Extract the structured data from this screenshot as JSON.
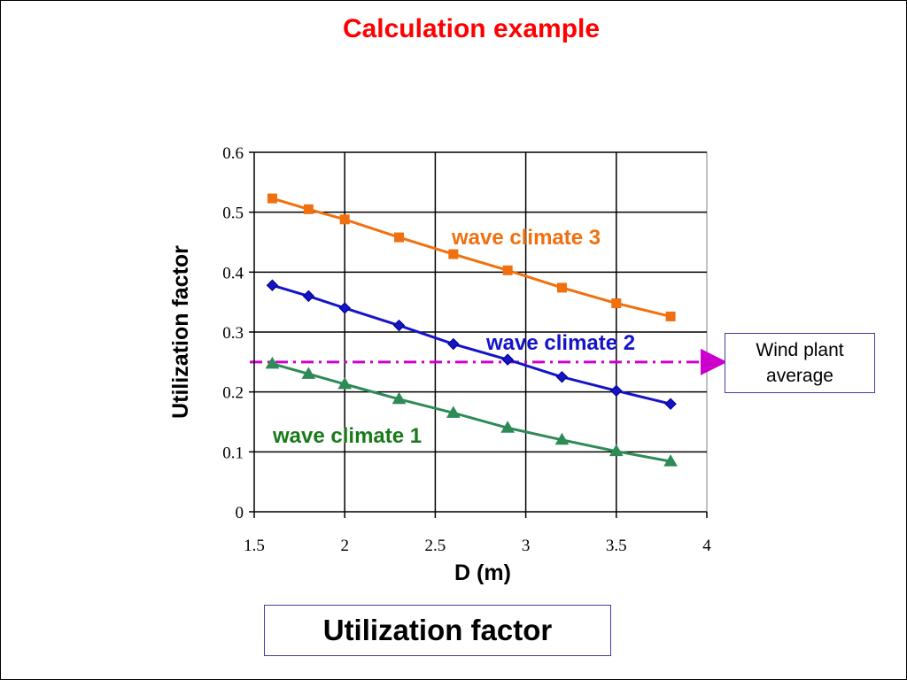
{
  "slide": {
    "title": "Calculation example",
    "caption": "Utilization factor"
  },
  "reference_box": {
    "line1": "Wind plant",
    "line2": "average"
  },
  "chart_data": {
    "type": "line",
    "title": "",
    "xlabel": "D (m)",
    "ylabel": "Utilization factor",
    "xlim": [
      1.5,
      4
    ],
    "ylim": [
      0,
      0.6
    ],
    "xticks": [
      1.5,
      2,
      2.5,
      3,
      3.5,
      4
    ],
    "yticks": [
      0,
      0.1,
      0.2,
      0.3,
      0.4,
      0.5,
      0.6
    ],
    "grid": true,
    "legend": "inline labels",
    "series": [
      {
        "name": "wave climate 3",
        "color": "#f07010",
        "marker": "square",
        "x": [
          1.6,
          1.8,
          2.0,
          2.3,
          2.6,
          2.9,
          3.2,
          3.5,
          3.8
        ],
        "y": [
          0.523,
          0.505,
          0.488,
          0.458,
          0.43,
          0.403,
          0.374,
          0.348,
          0.326
        ]
      },
      {
        "name": "wave climate 2",
        "color": "#1414c8",
        "marker": "diamond",
        "x": [
          1.6,
          1.8,
          2.0,
          2.3,
          2.6,
          2.9,
          3.2,
          3.5,
          3.8
        ],
        "y": [
          0.378,
          0.36,
          0.34,
          0.311,
          0.28,
          0.254,
          0.225,
          0.202,
          0.18
        ]
      },
      {
        "name": "wave climate 1",
        "color": "#2e8b57",
        "marker": "triangle",
        "x": [
          1.6,
          1.8,
          2.0,
          2.3,
          2.6,
          2.9,
          3.2,
          3.5,
          3.8
        ],
        "y": [
          0.247,
          0.23,
          0.213,
          0.188,
          0.165,
          0.14,
          0.12,
          0.101,
          0.084
        ]
      }
    ],
    "reference_line": {
      "value": 0.25,
      "color": "#cc00cc",
      "style": "dash-dot"
    },
    "label_colors": {
      "wave climate 3": "#f07010",
      "wave climate 2": "#1414c8",
      "wave climate 1": "#1a7a1a"
    }
  }
}
